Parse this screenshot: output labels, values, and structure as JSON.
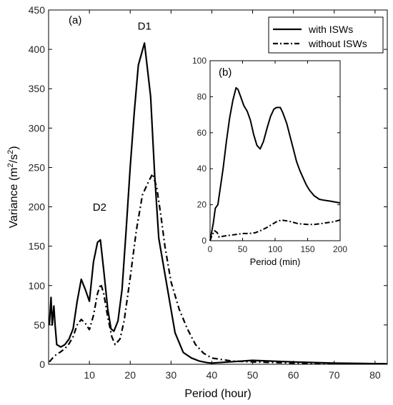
{
  "chart_data": [
    {
      "panel": "(a)",
      "type": "line",
      "xlabel": "Period (hour)",
      "ylabel_text": "Variance (m",
      "ylabel_sup1": "2",
      "ylabel_mid": "/s",
      "ylabel_sup2": "2",
      "ylabel_end": ")",
      "xlim": [
        0,
        83
      ],
      "ylim": [
        0,
        450
      ],
      "xticks": [
        10,
        20,
        30,
        40,
        50,
        60,
        70,
        80
      ],
      "yticks": [
        0,
        50,
        100,
        150,
        200,
        250,
        300,
        350,
        400,
        450
      ],
      "grid": false,
      "legend_position": "top-right",
      "annotations": [
        {
          "text": "D1",
          "x": 23.5,
          "y": 425
        },
        {
          "text": "D2",
          "x": 12.5,
          "y": 195
        }
      ],
      "series": [
        {
          "name": "with ISWs",
          "style": "solid",
          "color": "#000000",
          "points": [
            [
              0.2,
              50
            ],
            [
              0.6,
              85
            ],
            [
              0.9,
              50
            ],
            [
              1.3,
              74
            ],
            [
              1.6,
              50
            ],
            [
              2,
              25
            ],
            [
              3,
              22
            ],
            [
              4,
              25
            ],
            [
              5,
              32
            ],
            [
              6,
              45
            ],
            [
              7,
              80
            ],
            [
              8,
              108
            ],
            [
              9,
              95
            ],
            [
              10,
              80
            ],
            [
              11,
              130
            ],
            [
              12,
              155
            ],
            [
              12.7,
              158
            ],
            [
              13.5,
              120
            ],
            [
              14.5,
              70
            ],
            [
              15.3,
              45
            ],
            [
              16,
              42
            ],
            [
              17,
              55
            ],
            [
              18,
              95
            ],
            [
              19,
              170
            ],
            [
              20,
              250
            ],
            [
              21,
              320
            ],
            [
              22,
              380
            ],
            [
              23.5,
              408
            ],
            [
              25,
              340
            ],
            [
              26,
              240
            ],
            [
              27,
              160
            ],
            [
              29,
              100
            ],
            [
              31,
              40
            ],
            [
              33,
              15
            ],
            [
              35,
              8
            ],
            [
              37,
              4
            ],
            [
              39,
              2
            ],
            [
              40,
              1.5
            ],
            [
              50,
              5
            ],
            [
              60,
              3
            ],
            [
              70,
              1.5
            ],
            [
              83,
              0.5
            ]
          ]
        },
        {
          "name": "without ISWs",
          "style": "dashdot",
          "color": "#000000",
          "points": [
            [
              0.2,
              3
            ],
            [
              1,
              8
            ],
            [
              1.8,
              12
            ],
            [
              3,
              16
            ],
            [
              4,
              20
            ],
            [
              5,
              26
            ],
            [
              6,
              35
            ],
            [
              7,
              50
            ],
            [
              8,
              57
            ],
            [
              9,
              52
            ],
            [
              10,
              44
            ],
            [
              11,
              62
            ],
            [
              12,
              90
            ],
            [
              12.8,
              102
            ],
            [
              13.5,
              90
            ],
            [
              14.5,
              60
            ],
            [
              15.5,
              35
            ],
            [
              16.3,
              25
            ],
            [
              17.5,
              32
            ],
            [
              18.5,
              55
            ],
            [
              20,
              110
            ],
            [
              21.5,
              170
            ],
            [
              23,
              215
            ],
            [
              24.5,
              232
            ],
            [
              25.5,
              242
            ],
            [
              26.5,
              225
            ],
            [
              27.5,
              190
            ],
            [
              28.5,
              150
            ],
            [
              30,
              105
            ],
            [
              32,
              70
            ],
            [
              34,
              45
            ],
            [
              36,
              25
            ],
            [
              38,
              14
            ],
            [
              40,
              8
            ],
            [
              45,
              4
            ],
            [
              50,
              3
            ],
            [
              60,
              1.5
            ],
            [
              70,
              1
            ],
            [
              83,
              0.5
            ]
          ]
        }
      ]
    },
    {
      "panel": "(b)",
      "type": "line",
      "xlabel": "Period (min)",
      "xlim": [
        0,
        200
      ],
      "ylim": [
        0,
        100
      ],
      "xticks": [
        0,
        50,
        100,
        150,
        200
      ],
      "yticks": [
        0,
        20,
        40,
        60,
        80,
        100
      ],
      "grid": false,
      "series": [
        {
          "name": "with ISWs",
          "style": "solid",
          "color": "#000000",
          "points": [
            [
              0,
              0
            ],
            [
              5,
              10
            ],
            [
              8,
              18
            ],
            [
              12,
              20
            ],
            [
              20,
              40
            ],
            [
              25,
              55
            ],
            [
              30,
              68
            ],
            [
              35,
              78
            ],
            [
              40,
              85
            ],
            [
              43,
              84
            ],
            [
              47,
              80
            ],
            [
              52,
              75
            ],
            [
              57,
              72
            ],
            [
              62,
              67
            ],
            [
              67,
              59
            ],
            [
              72,
              53
            ],
            [
              77,
              51
            ],
            [
              82,
              55
            ],
            [
              88,
              63
            ],
            [
              93,
              69
            ],
            [
              98,
              73
            ],
            [
              102,
              74
            ],
            [
              108,
              74
            ],
            [
              112,
              71
            ],
            [
              118,
              65
            ],
            [
              123,
              58
            ],
            [
              128,
              51
            ],
            [
              133,
              44
            ],
            [
              138,
              39
            ],
            [
              143,
              35
            ],
            [
              148,
              31
            ],
            [
              153,
              28
            ],
            [
              160,
              25
            ],
            [
              168,
              23
            ],
            [
              175,
              22.5
            ],
            [
              185,
              22
            ],
            [
              200,
              21
            ]
          ]
        },
        {
          "name": "without ISWs",
          "style": "dashdot",
          "color": "#000000",
          "points": [
            [
              0,
              0
            ],
            [
              3,
              3
            ],
            [
              7,
              5.5
            ],
            [
              11,
              4.5
            ],
            [
              14,
              2
            ],
            [
              20,
              2.5
            ],
            [
              30,
              3
            ],
            [
              40,
              3.5
            ],
            [
              50,
              4
            ],
            [
              60,
              4
            ],
            [
              70,
              4.5
            ],
            [
              80,
              6
            ],
            [
              88,
              7.5
            ],
            [
              95,
              9
            ],
            [
              102,
              10.5
            ],
            [
              110,
              11.5
            ],
            [
              118,
              11
            ],
            [
              125,
              10.5
            ],
            [
              135,
              9.5
            ],
            [
              150,
              9
            ],
            [
              160,
              9
            ],
            [
              170,
              9.5
            ],
            [
              180,
              10
            ],
            [
              190,
              10.5
            ],
            [
              200,
              11.5
            ]
          ]
        }
      ]
    }
  ]
}
